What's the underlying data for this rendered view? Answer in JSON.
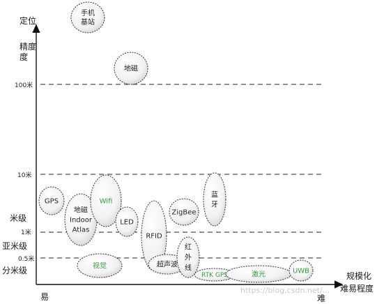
{
  "axes": {
    "y_title": [
      "定位",
      "精度"
    ],
    "y_title_cont": "度",
    "x_title_lines": [
      "规模化",
      "难易程度"
    ],
    "x_start": "易",
    "x_end": "难"
  },
  "levels": [
    {
      "id": "100m",
      "label": "100米",
      "color": "#222222"
    },
    {
      "id": "10m",
      "label": "10米",
      "color": "#2e9e3a"
    },
    {
      "id": "1m",
      "label": "1米",
      "color": "#2e9e3a"
    },
    {
      "id": "05m",
      "label": "0.5米",
      "color": "#2e9e3a"
    }
  ],
  "grades": [
    {
      "id": "mi",
      "label": "米级"
    },
    {
      "id": "yami",
      "label": "亚米级"
    },
    {
      "id": "fenmi",
      "label": "分米级"
    }
  ],
  "technologies": [
    {
      "id": "base-station",
      "lines": [
        "手机",
        "基站"
      ],
      "color": "#222222"
    },
    {
      "id": "geomagnetic",
      "lines": [
        "地磁"
      ],
      "color": "#222222"
    },
    {
      "id": "gps",
      "lines": [
        "GPS"
      ],
      "color": "#222222"
    },
    {
      "id": "indoor-atlas",
      "lines": [
        "地磁",
        "Indoor",
        "Atlas"
      ],
      "color": "#222222"
    },
    {
      "id": "wifi",
      "lines": [
        "Wifi"
      ],
      "color": "#2e9e3a"
    },
    {
      "id": "led",
      "lines": [
        "LED"
      ],
      "color": "#222222"
    },
    {
      "id": "rfid",
      "lines": [
        "RFID"
      ],
      "color": "#222222"
    },
    {
      "id": "zigbee",
      "lines": [
        "ZigBee"
      ],
      "color": "#222222"
    },
    {
      "id": "bluetooth",
      "lines": [
        "蓝",
        "牙"
      ],
      "color": "#222222"
    },
    {
      "id": "vision",
      "lines": [
        "视觉"
      ],
      "color": "#2e9e3a"
    },
    {
      "id": "ultrasonic",
      "lines": [
        "超声波"
      ],
      "color": "#222222"
    },
    {
      "id": "infrared",
      "lines": [
        "红",
        "外",
        "线"
      ],
      "color": "#222222"
    },
    {
      "id": "rtk-gps",
      "lines": [
        "RTK GPS"
      ],
      "color": "#2e9e3a"
    },
    {
      "id": "laser",
      "lines": [
        "激光"
      ],
      "color": "#2e9e3a"
    },
    {
      "id": "uwb",
      "lines": [
        "UWB"
      ],
      "color": "#2e9e3a"
    }
  ],
  "watermark": "https://blog.csdn.net/..."
}
